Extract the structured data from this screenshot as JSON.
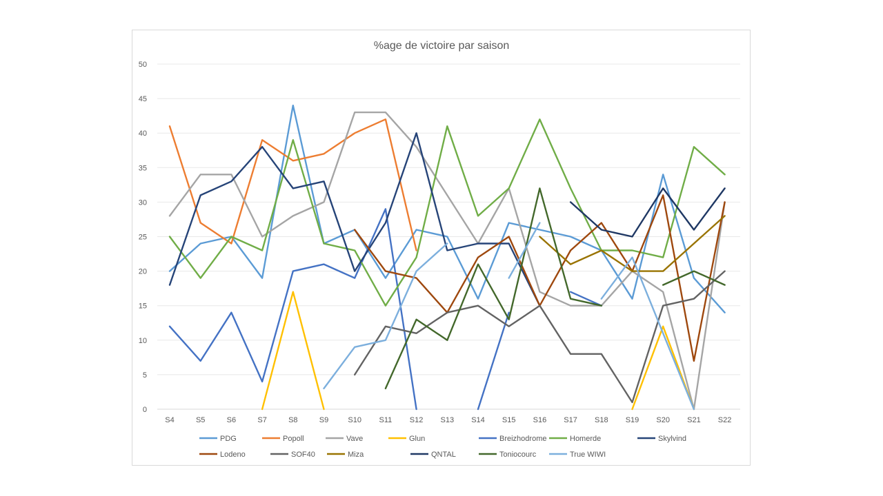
{
  "chart_data": {
    "type": "line",
    "title": "%age de victoire par saison",
    "xlabel": "",
    "ylabel": "",
    "ylim": [
      0,
      50
    ],
    "yticks": [
      0,
      5,
      10,
      15,
      20,
      25,
      30,
      35,
      40,
      45,
      50
    ],
    "grid": true,
    "legend_position": "bottom",
    "categories": [
      "S4",
      "S5",
      "S6",
      "S7",
      "S8",
      "S9",
      "S10",
      "S11",
      "S12",
      "S13",
      "S14",
      "S15",
      "S16",
      "S17",
      "S18",
      "S19",
      "S20",
      "S21",
      "S22"
    ],
    "series": [
      {
        "name": "PDG",
        "color": "#5b9bd5",
        "values": [
          20,
          24,
          25,
          19,
          44,
          24,
          26,
          19,
          26,
          25,
          16,
          27,
          26,
          25,
          23,
          16,
          34,
          19,
          14
        ]
      },
      {
        "name": "Popoll",
        "color": "#ed7d31",
        "values": [
          41,
          27,
          24,
          39,
          36,
          37,
          40,
          42,
          23,
          null,
          null,
          null,
          null,
          null,
          null,
          null,
          null,
          null,
          null
        ]
      },
      {
        "name": "Vave",
        "color": "#a5a5a5",
        "values": [
          28,
          34,
          34,
          25,
          28,
          30,
          43,
          43,
          38,
          31,
          24,
          32,
          17,
          15,
          15,
          20,
          17,
          0,
          30
        ]
      },
      {
        "name": "Glun",
        "color": "#ffc000",
        "values": [
          null,
          null,
          null,
          0,
          17,
          0,
          null,
          null,
          null,
          null,
          null,
          null,
          null,
          null,
          null,
          0,
          12,
          0,
          null
        ]
      },
      {
        "name": "Breizhodrome",
        "color": "#4472c4",
        "values": [
          12,
          7,
          14,
          4,
          20,
          21,
          19,
          29,
          0,
          null,
          0,
          14,
          null,
          17,
          15,
          null,
          null,
          null,
          null
        ]
      },
      {
        "name": "Homerde",
        "color": "#70ad47",
        "values": [
          25,
          19,
          25,
          23,
          39,
          24,
          23,
          15,
          22,
          41,
          28,
          32,
          42,
          32,
          23,
          23,
          22,
          38,
          34
        ]
      },
      {
        "name": "Skylvind",
        "color": "#264478",
        "values": [
          18,
          31,
          33,
          38,
          32,
          33,
          20,
          27,
          40,
          23,
          24,
          24,
          15,
          null,
          null,
          null,
          null,
          null,
          null
        ]
      },
      {
        "name": "Lodeno",
        "color": "#9e480e",
        "values": [
          null,
          null,
          null,
          null,
          null,
          null,
          26,
          20,
          19,
          14,
          22,
          25,
          15,
          23,
          27,
          20,
          31,
          7,
          30
        ]
      },
      {
        "name": "SOF40",
        "color": "#636363",
        "values": [
          null,
          null,
          null,
          null,
          null,
          null,
          5,
          12,
          11,
          14,
          15,
          12,
          15,
          8,
          8,
          1,
          15,
          16,
          20
        ]
      },
      {
        "name": "Miza",
        "color": "#997300",
        "values": [
          null,
          null,
          null,
          null,
          null,
          null,
          null,
          null,
          null,
          null,
          null,
          null,
          25,
          21,
          23,
          20,
          20,
          24,
          28
        ]
      },
      {
        "name": "QNTAL",
        "color": "#1f3864",
        "values": [
          null,
          null,
          null,
          null,
          null,
          null,
          null,
          null,
          null,
          null,
          null,
          null,
          null,
          30,
          26,
          25,
          32,
          26,
          32
        ]
      },
      {
        "name": "Toniocourc",
        "color": "#43682b",
        "values": [
          null,
          null,
          null,
          null,
          null,
          null,
          null,
          3,
          13,
          10,
          21,
          13,
          32,
          16,
          15,
          null,
          18,
          20,
          18
        ]
      },
      {
        "name": "True WIWI",
        "color": "#7cafdd",
        "values": [
          null,
          null,
          null,
          null,
          null,
          3,
          9,
          10,
          20,
          24,
          null,
          19,
          27,
          null,
          16,
          22,
          11,
          0,
          null
        ]
      }
    ]
  }
}
